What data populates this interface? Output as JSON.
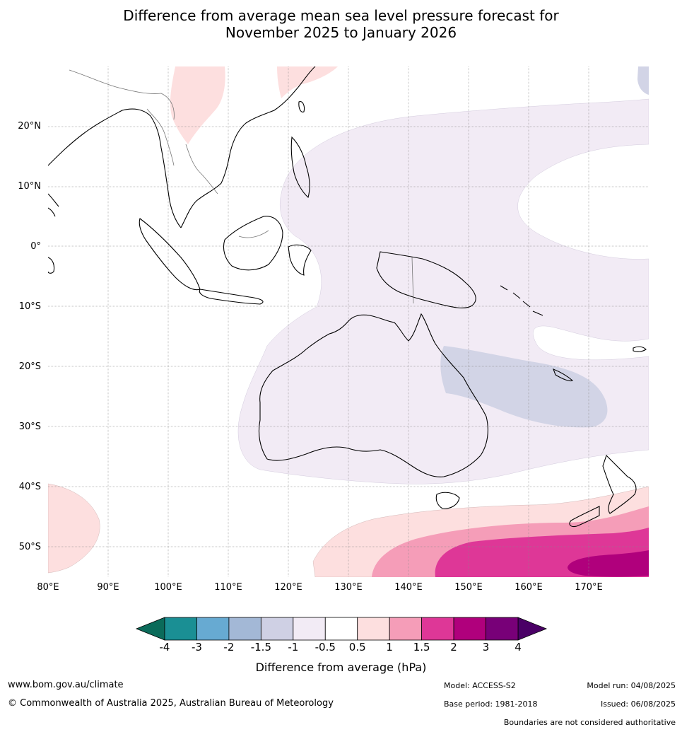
{
  "title_line1": "Difference from average mean sea level pressure forecast for",
  "title_line2": "November 2025 to January 2026",
  "map": {
    "lat_labels": [
      "20°N",
      "10°N",
      "0°",
      "10°S",
      "20°S",
      "30°S",
      "40°S",
      "50°S"
    ],
    "lon_labels": [
      "80°E",
      "90°E",
      "100°E",
      "110°E",
      "120°E",
      "130°E",
      "140°E",
      "150°E",
      "160°E",
      "170°E"
    ],
    "lon_range": [
      80,
      180
    ],
    "lat_range": [
      -55,
      30
    ]
  },
  "colorbar": {
    "ticks": [
      "-4",
      "-3",
      "-2",
      "-1.5",
      "-1",
      "-0.5",
      "0.5",
      "1",
      "1.5",
      "2",
      "3",
      "4"
    ],
    "colors": [
      "#1a8f94",
      "#67aad2",
      "#a3b8d6",
      "#cfd0e4",
      "#f2ebf5",
      "#ffffff",
      "#fddfdf",
      "#f59db8",
      "#de3797",
      "#b0007c",
      "#780078"
    ],
    "under_color": "#0b6b5a",
    "over_color": "#4a0066",
    "label": "Difference from average (hPa)"
  },
  "footer": {
    "url": "www.bom.gov.au/climate",
    "copyright": "© Commonwealth of Australia 2025, Australian Bureau of Meteorology",
    "model": "Model: ACCESS-S2",
    "base_period": "Base period: 1981-2018",
    "model_run": "Model run: 04/08/2025",
    "issued": "Issued: 06/08/2025",
    "disclaimer": "Boundaries are not considered authoritative"
  }
}
